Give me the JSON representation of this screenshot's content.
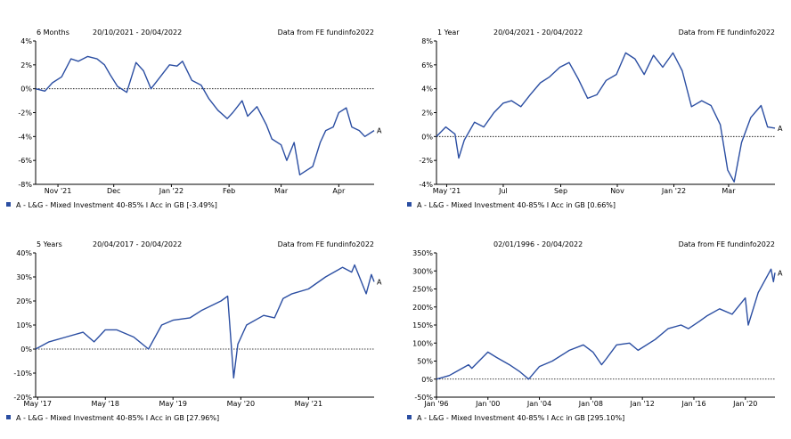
{
  "colors": {
    "series": "#2b4ea2",
    "axis": "#000000",
    "zero_line": "#000000"
  },
  "chart_data": [
    {
      "type": "line",
      "period_label": "6 Months",
      "date_range": "20/10/2021 - 20/04/2022",
      "source": "Data from FE fundinfo2022",
      "end_label": "A",
      "legend": "A - L&G - Mixed Investment 40-85% I Acc in GB [-3.49%]",
      "y_ticks": [
        "4%",
        "2%",
        "0%",
        "-2%",
        "-4%",
        "-6%",
        "-8%"
      ],
      "ylim": [
        -8,
        4
      ],
      "x_ticks": [
        {
          "label": "Nov '21",
          "x": "2021-11-01"
        },
        {
          "label": "Dec",
          "x": "2021-12-01"
        },
        {
          "label": "Jan '22",
          "x": "2022-01-01"
        },
        {
          "label": "Feb",
          "x": "2022-02-01"
        },
        {
          "label": "Mar",
          "x": "2022-03-01"
        },
        {
          "label": "Apr",
          "x": "2022-04-01"
        }
      ],
      "xlim": [
        "2021-10-20",
        "2022-04-20"
      ],
      "series": [
        {
          "x": [
            "2021-10-20",
            "2021-10-25",
            "2021-10-29",
            "2021-11-03",
            "2021-11-08",
            "2021-11-12",
            "2021-11-17",
            "2021-11-22",
            "2021-11-26",
            "2021-11-29",
            "2021-12-03",
            "2021-12-08",
            "2021-12-13",
            "2021-12-17",
            "2021-12-21",
            "2021-12-27",
            "2021-12-31",
            "2022-01-04",
            "2022-01-07",
            "2022-01-12",
            "2022-01-17",
            "2022-01-21",
            "2022-01-26",
            "2022-01-31",
            "2022-02-03",
            "2022-02-08",
            "2022-02-11",
            "2022-02-16",
            "2022-02-21",
            "2022-02-24",
            "2022-03-01",
            "2022-03-04",
            "2022-03-08",
            "2022-03-11",
            "2022-03-15",
            "2022-03-18",
            "2022-03-22",
            "2022-03-25",
            "2022-03-29",
            "2022-04-01",
            "2022-04-05",
            "2022-04-08",
            "2022-04-12",
            "2022-04-15",
            "2022-04-20"
          ],
          "y": [
            0,
            -0.2,
            0.5,
            1.0,
            2.5,
            2.3,
            2.7,
            2.5,
            2.0,
            1.2,
            0.2,
            -0.3,
            2.2,
            1.5,
            0.0,
            1.2,
            2.0,
            1.9,
            2.3,
            0.7,
            0.3,
            -0.8,
            -1.8,
            -2.5,
            -2.0,
            -1.0,
            -2.3,
            -1.5,
            -3.0,
            -4.2,
            -4.7,
            -6.0,
            -4.5,
            -7.2,
            -6.8,
            -6.5,
            -4.5,
            -3.5,
            -3.2,
            -2.0,
            -1.6,
            -3.2,
            -3.5,
            -4.0,
            -3.5
          ]
        }
      ]
    },
    {
      "type": "line",
      "period_label": "1 Year",
      "date_range": "20/04/2021 - 20/04/2022",
      "source": "Data from FE fundinfo2022",
      "end_label": "A",
      "legend": "A - L&G - Mixed Investment 40-85% I Acc in GB [0.66%]",
      "y_ticks": [
        "8%",
        "6%",
        "4%",
        "2%",
        "0%",
        "-2%",
        "-4%"
      ],
      "ylim": [
        -4,
        8
      ],
      "x_ticks": [
        {
          "label": "May '21",
          "x": "2021-05-01"
        },
        {
          "label": "Jul",
          "x": "2021-07-01"
        },
        {
          "label": "Sep",
          "x": "2021-09-01"
        },
        {
          "label": "Nov",
          "x": "2021-11-01"
        },
        {
          "label": "Jan '22",
          "x": "2022-01-01"
        },
        {
          "label": "Mar",
          "x": "2022-03-01"
        }
      ],
      "xlim": [
        "2021-04-20",
        "2022-04-20"
      ],
      "series": [
        {
          "x": [
            "2021-04-20",
            "2021-04-30",
            "2021-05-10",
            "2021-05-14",
            "2021-05-20",
            "2021-05-31",
            "2021-06-10",
            "2021-06-21",
            "2021-07-01",
            "2021-07-10",
            "2021-07-20",
            "2021-07-30",
            "2021-08-10",
            "2021-08-20",
            "2021-08-31",
            "2021-09-10",
            "2021-09-20",
            "2021-09-30",
            "2021-10-10",
            "2021-10-20",
            "2021-10-31",
            "2021-11-10",
            "2021-11-20",
            "2021-11-30",
            "2021-12-10",
            "2021-12-20",
            "2021-12-31",
            "2022-01-10",
            "2022-01-20",
            "2022-01-31",
            "2022-02-10",
            "2022-02-20",
            "2022-02-28",
            "2022-03-07",
            "2022-03-15",
            "2022-03-25",
            "2022-04-05",
            "2022-04-12",
            "2022-04-20"
          ],
          "y": [
            0,
            0.8,
            0.2,
            -1.8,
            -0.3,
            1.2,
            0.8,
            2.0,
            2.8,
            3.0,
            2.5,
            3.5,
            4.5,
            5.0,
            5.8,
            6.2,
            4.8,
            3.2,
            3.5,
            4.7,
            5.2,
            7.0,
            6.5,
            5.2,
            6.8,
            5.8,
            7.0,
            5.5,
            2.5,
            3.0,
            2.6,
            1.0,
            -2.8,
            -3.8,
            -0.5,
            1.6,
            2.6,
            0.8,
            0.7
          ]
        }
      ]
    },
    {
      "type": "line",
      "period_label": "5 Years",
      "date_range": "20/04/2017 - 20/04/2022",
      "source": "Data from FE fundinfo2022",
      "end_label": "A",
      "legend": "A - L&G - Mixed Investment 40-85% I Acc in GB [27.96%]",
      "y_ticks": [
        "40%",
        "30%",
        "20%",
        "10%",
        "0%",
        "-10%",
        "-20%"
      ],
      "ylim": [
        -20,
        40
      ],
      "x_ticks": [
        {
          "label": "May '17",
          "x": "2017-05-01"
        },
        {
          "label": "May '18",
          "x": "2018-05-01"
        },
        {
          "label": "May '19",
          "x": "2019-05-01"
        },
        {
          "label": "May '20",
          "x": "2020-05-01"
        },
        {
          "label": "May '21",
          "x": "2021-05-01"
        }
      ],
      "xlim": [
        "2017-04-20",
        "2022-04-20"
      ],
      "series": [
        {
          "x": [
            "2017-04-20",
            "2017-07-01",
            "2017-10-01",
            "2018-01-01",
            "2018-03-01",
            "2018-05-01",
            "2018-07-01",
            "2018-10-01",
            "2018-12-20",
            "2019-03-01",
            "2019-05-01",
            "2019-08-01",
            "2019-10-01",
            "2020-01-15",
            "2020-02-20",
            "2020-03-23",
            "2020-04-15",
            "2020-06-01",
            "2020-09-01",
            "2020-10-30",
            "2020-12-15",
            "2021-02-01",
            "2021-05-01",
            "2021-08-01",
            "2021-11-01",
            "2021-12-20",
            "2022-01-05",
            "2022-03-08",
            "2022-04-05",
            "2022-04-20"
          ],
          "y": [
            0,
            3,
            5,
            7,
            3,
            8,
            8,
            5,
            0,
            10,
            12,
            13,
            16,
            20,
            22,
            -12,
            2,
            10,
            14,
            13,
            21,
            23,
            25,
            30,
            34,
            32,
            35,
            23,
            31,
            28
          ]
        }
      ]
    },
    {
      "type": "line",
      "period_label": "",
      "date_range": "02/01/1996 - 20/04/2022",
      "source": "Data from FE fundinfo2022",
      "end_label": "A",
      "legend": "A - L&G - Mixed Investment 40-85% I Acc in GB [295.10%]",
      "y_ticks": [
        "350%",
        "300%",
        "250%",
        "200%",
        "150%",
        "100%",
        "50%",
        "0%",
        "-50%"
      ],
      "ylim": [
        -50,
        350
      ],
      "x_ticks": [
        {
          "label": "Jan '96",
          "x": "1996-01-01"
        },
        {
          "label": "Jan '00",
          "x": "2000-01-01"
        },
        {
          "label": "Jan '04",
          "x": "2004-01-01"
        },
        {
          "label": "Jan '08",
          "x": "2008-01-01"
        },
        {
          "label": "Jan '12",
          "x": "2012-01-01"
        },
        {
          "label": "Jan '16",
          "x": "2016-01-01"
        },
        {
          "label": "Jan '20",
          "x": "2020-01-01"
        }
      ],
      "xlim": [
        "1996-01-02",
        "2022-04-20"
      ],
      "series": [
        {
          "x": [
            "1996-01-02",
            "1997-01-01",
            "1998-07-01",
            "1998-10-01",
            "1999-12-31",
            "2000-09-01",
            "2001-09-01",
            "2002-07-01",
            "2003-03-01",
            "2004-01-01",
            "2005-01-01",
            "2006-05-01",
            "2007-06-01",
            "2008-03-01",
            "2008-11-01",
            "2009-03-01",
            "2009-12-31",
            "2010-12-31",
            "2011-09-01",
            "2012-12-31",
            "2013-12-31",
            "2014-12-31",
            "2015-08-01",
            "2016-06-01",
            "2016-12-31",
            "2017-12-31",
            "2018-12-20",
            "2019-12-31",
            "2020-03-23",
            "2020-12-31",
            "2021-12-31",
            "2022-03-08",
            "2022-04-20"
          ],
          "y": [
            0,
            10,
            40,
            30,
            75,
            60,
            40,
            20,
            0,
            35,
            50,
            80,
            95,
            75,
            40,
            55,
            95,
            100,
            80,
            110,
            140,
            150,
            140,
            160,
            175,
            195,
            180,
            225,
            150,
            240,
            305,
            270,
            295
          ]
        }
      ]
    }
  ]
}
